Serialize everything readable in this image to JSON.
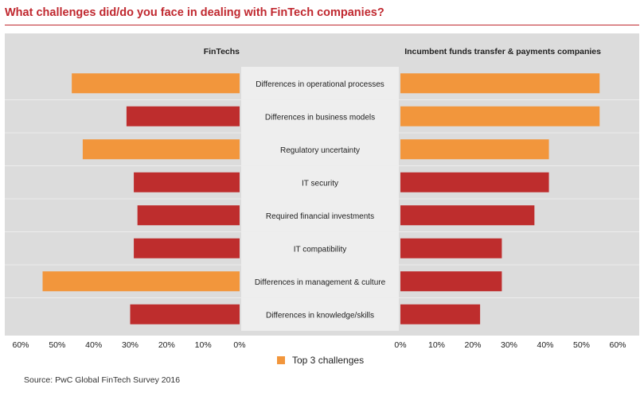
{
  "title": "What challenges did/do you face in dealing with FinTech companies?",
  "source": "Source: PwC Global FinTech Survey 2016",
  "colors": {
    "top3": "#f2963c",
    "other": "#be2d2d",
    "title": "#c0282f",
    "panel": "#dcdcdc",
    "category_band": "#eeeeee"
  },
  "chart_data": {
    "type": "bar",
    "orientation": "horizontal",
    "layout": "butterfly",
    "title": "What challenges did/do you face in dealing with FinTech companies?",
    "categories": [
      "Differences in operational processes",
      "Differences in business models",
      "Regulatory uncertainty",
      "IT security",
      "Required financial investments",
      "IT compatibility",
      "Differences in management & culture",
      "Differences in knowledge/skills"
    ],
    "series": [
      {
        "name": "FinTechs",
        "side": "left",
        "values": [
          46,
          31,
          43,
          29,
          28,
          29,
          54,
          30
        ],
        "top3": [
          true,
          false,
          true,
          false,
          false,
          false,
          true,
          false
        ]
      },
      {
        "name": "Incumbent funds transfer & payments companies",
        "side": "right",
        "values": [
          55,
          55,
          41,
          41,
          37,
          28,
          28,
          22
        ],
        "top3": [
          true,
          true,
          true,
          false,
          false,
          false,
          false,
          false
        ]
      }
    ],
    "left_ticks": [
      "60%",
      "50%",
      "40%",
      "30%",
      "20%",
      "10%",
      "0%"
    ],
    "right_ticks": [
      "0%",
      "10%",
      "20%",
      "30%",
      "40%",
      "50%",
      "60%"
    ],
    "xlim": [
      0,
      60
    ],
    "unit": "%",
    "legend": {
      "label": "Top 3 challenges",
      "placement": "bottom-center"
    }
  }
}
